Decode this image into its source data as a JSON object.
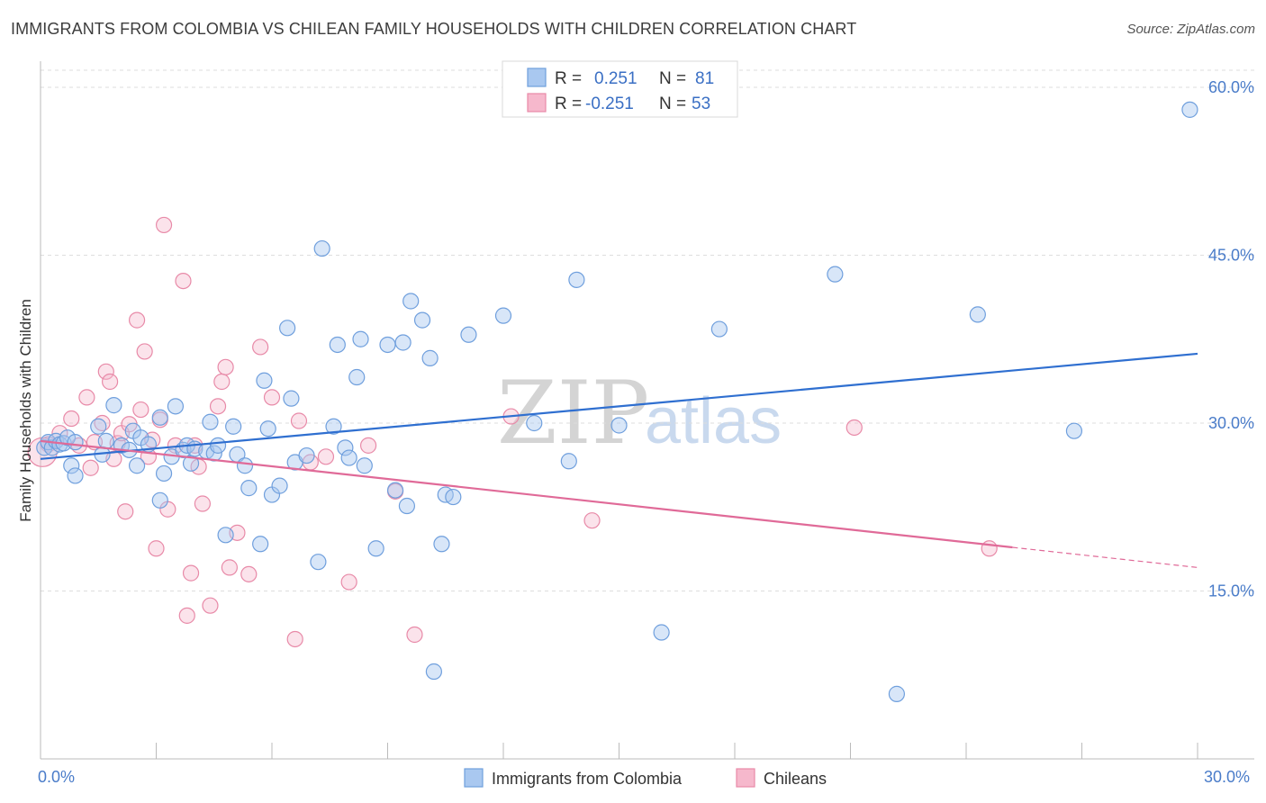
{
  "title": "IMMIGRANTS FROM COLOMBIA VS CHILEAN FAMILY HOUSEHOLDS WITH CHILDREN CORRELATION CHART",
  "source": "Source: ZipAtlas.com",
  "watermark": {
    "zip": "ZIP",
    "atlas": "atlas"
  },
  "colors": {
    "blue_fill": "#a9c8f0",
    "blue_stroke": "#6f9fdd",
    "blue_line": "#2f6fd0",
    "pink_fill": "#f6b8cc",
    "pink_stroke": "#e88aa8",
    "pink_line": "#e06a98"
  },
  "legend": {
    "r_label": "R =",
    "n_label": "N =",
    "blue": {
      "r": "0.251",
      "n": "81"
    },
    "pink": {
      "r": "-0.251",
      "n": "53"
    }
  },
  "chart_data": {
    "type": "scatter",
    "title": "IMMIGRANTS FROM COLOMBIA VS CHILEAN FAMILY HOUSEHOLDS WITH CHILDREN CORRELATION CHART",
    "xlabel": "",
    "ylabel": "Family Households with Children",
    "xlim": [
      0,
      30
    ],
    "ylim": [
      0,
      62
    ],
    "x_tick_labels": [
      "0.0%",
      "30.0%"
    ],
    "y_ticks": [
      15,
      30,
      45,
      60
    ],
    "y_tick_labels": [
      "15.0%",
      "30.0%",
      "45.0%",
      "60.0%"
    ],
    "legend_position": "top-center",
    "series": [
      {
        "name": "Immigrants from Colombia",
        "color": "#6f9fdd",
        "trend": {
          "x": [
            0,
            30
          ],
          "y": [
            26.8,
            36.2
          ]
        },
        "points": [
          [
            0.1,
            27.8
          ],
          [
            0.2,
            28.3
          ],
          [
            0.3,
            27.8
          ],
          [
            0.4,
            28.4
          ],
          [
            0.5,
            28.1
          ],
          [
            0.6,
            28.2
          ],
          [
            0.7,
            28.7
          ],
          [
            0.8,
            26.2
          ],
          [
            0.9,
            28.3
          ],
          [
            0.9,
            25.3
          ],
          [
            1.5,
            29.7
          ],
          [
            1.6,
            27.2
          ],
          [
            1.7,
            28.4
          ],
          [
            1.9,
            31.6
          ],
          [
            2.1,
            28.0
          ],
          [
            2.3,
            27.6
          ],
          [
            2.4,
            29.3
          ],
          [
            2.5,
            26.2
          ],
          [
            2.6,
            28.7
          ],
          [
            2.8,
            28.1
          ],
          [
            3.1,
            30.5
          ],
          [
            3.1,
            23.1
          ],
          [
            3.2,
            25.5
          ],
          [
            3.4,
            27.0
          ],
          [
            3.5,
            31.5
          ],
          [
            3.7,
            27.6
          ],
          [
            3.8,
            28.0
          ],
          [
            3.9,
            26.4
          ],
          [
            4.0,
            27.7
          ],
          [
            4.3,
            27.5
          ],
          [
            4.4,
            30.1
          ],
          [
            4.5,
            27.3
          ],
          [
            4.6,
            28.0
          ],
          [
            4.8,
            20.0
          ],
          [
            5.0,
            29.7
          ],
          [
            5.1,
            27.2
          ],
          [
            5.3,
            26.2
          ],
          [
            5.4,
            24.2
          ],
          [
            5.7,
            19.2
          ],
          [
            5.8,
            33.8
          ],
          [
            5.9,
            29.5
          ],
          [
            6.0,
            23.6
          ],
          [
            6.2,
            24.4
          ],
          [
            6.4,
            38.5
          ],
          [
            6.5,
            32.2
          ],
          [
            6.6,
            26.5
          ],
          [
            6.9,
            27.1
          ],
          [
            7.2,
            17.6
          ],
          [
            7.3,
            45.6
          ],
          [
            7.6,
            29.7
          ],
          [
            7.7,
            37.0
          ],
          [
            7.9,
            27.8
          ],
          [
            8.0,
            26.9
          ],
          [
            8.2,
            34.1
          ],
          [
            8.3,
            37.5
          ],
          [
            8.4,
            26.2
          ],
          [
            8.7,
            18.8
          ],
          [
            9.0,
            37.0
          ],
          [
            9.2,
            24.0
          ],
          [
            9.4,
            37.2
          ],
          [
            9.5,
            22.6
          ],
          [
            9.6,
            40.9
          ],
          [
            9.9,
            39.2
          ],
          [
            10.1,
            35.8
          ],
          [
            10.2,
            7.8
          ],
          [
            10.4,
            19.2
          ],
          [
            10.5,
            23.6
          ],
          [
            10.7,
            23.4
          ],
          [
            11.1,
            37.9
          ],
          [
            12.0,
            39.6
          ],
          [
            12.8,
            30.0
          ],
          [
            13.7,
            26.6
          ],
          [
            13.9,
            42.8
          ],
          [
            15.0,
            29.8
          ],
          [
            16.1,
            11.3
          ],
          [
            17.6,
            38.4
          ],
          [
            20.6,
            43.3
          ],
          [
            22.2,
            5.8
          ],
          [
            24.3,
            39.7
          ],
          [
            26.8,
            29.3
          ],
          [
            29.8,
            58.0
          ]
        ]
      },
      {
        "name": "Chileans",
        "color": "#e88aa8",
        "trend": {
          "x": [
            0,
            25.2
          ],
          "y": [
            28.4,
            18.9
          ]
        },
        "trend_dashed": {
          "x": [
            25.2,
            30
          ],
          "y": [
            18.9,
            17.1
          ]
        },
        "points": [
          [
            0.2,
            28.1
          ],
          [
            0.5,
            29.1
          ],
          [
            0.8,
            30.4
          ],
          [
            1.0,
            28.0
          ],
          [
            1.2,
            32.3
          ],
          [
            1.3,
            26.0
          ],
          [
            1.4,
            28.3
          ],
          [
            1.6,
            30.0
          ],
          [
            1.7,
            34.6
          ],
          [
            1.8,
            33.7
          ],
          [
            1.9,
            26.8
          ],
          [
            2.0,
            28.2
          ],
          [
            2.1,
            29.1
          ],
          [
            2.2,
            22.1
          ],
          [
            2.3,
            29.9
          ],
          [
            2.5,
            39.2
          ],
          [
            2.6,
            31.2
          ],
          [
            2.7,
            36.4
          ],
          [
            2.8,
            27.0
          ],
          [
            2.9,
            28.5
          ],
          [
            3.0,
            18.8
          ],
          [
            3.1,
            30.3
          ],
          [
            3.2,
            47.7
          ],
          [
            3.3,
            22.3
          ],
          [
            3.5,
            28.0
          ],
          [
            3.7,
            42.7
          ],
          [
            3.8,
            12.8
          ],
          [
            3.9,
            16.6
          ],
          [
            4.0,
            28.0
          ],
          [
            4.1,
            26.1
          ],
          [
            4.2,
            22.8
          ],
          [
            4.4,
            13.7
          ],
          [
            4.6,
            31.5
          ],
          [
            4.7,
            33.7
          ],
          [
            4.8,
            35.0
          ],
          [
            4.9,
            17.1
          ],
          [
            5.1,
            20.2
          ],
          [
            5.4,
            16.5
          ],
          [
            5.7,
            36.8
          ],
          [
            6.0,
            32.3
          ],
          [
            6.6,
            10.7
          ],
          [
            6.7,
            30.2
          ],
          [
            7.0,
            26.5
          ],
          [
            7.4,
            27.0
          ],
          [
            8.0,
            15.8
          ],
          [
            8.5,
            28.0
          ],
          [
            9.2,
            23.9
          ],
          [
            9.7,
            11.1
          ],
          [
            12.2,
            30.6
          ],
          [
            14.3,
            21.3
          ],
          [
            21.1,
            29.6
          ],
          [
            24.6,
            18.8
          ],
          [
            0.05,
            27.4
          ]
        ]
      }
    ]
  },
  "bottom_legend": {
    "blue": "Immigrants from Colombia",
    "pink": "Chileans"
  }
}
